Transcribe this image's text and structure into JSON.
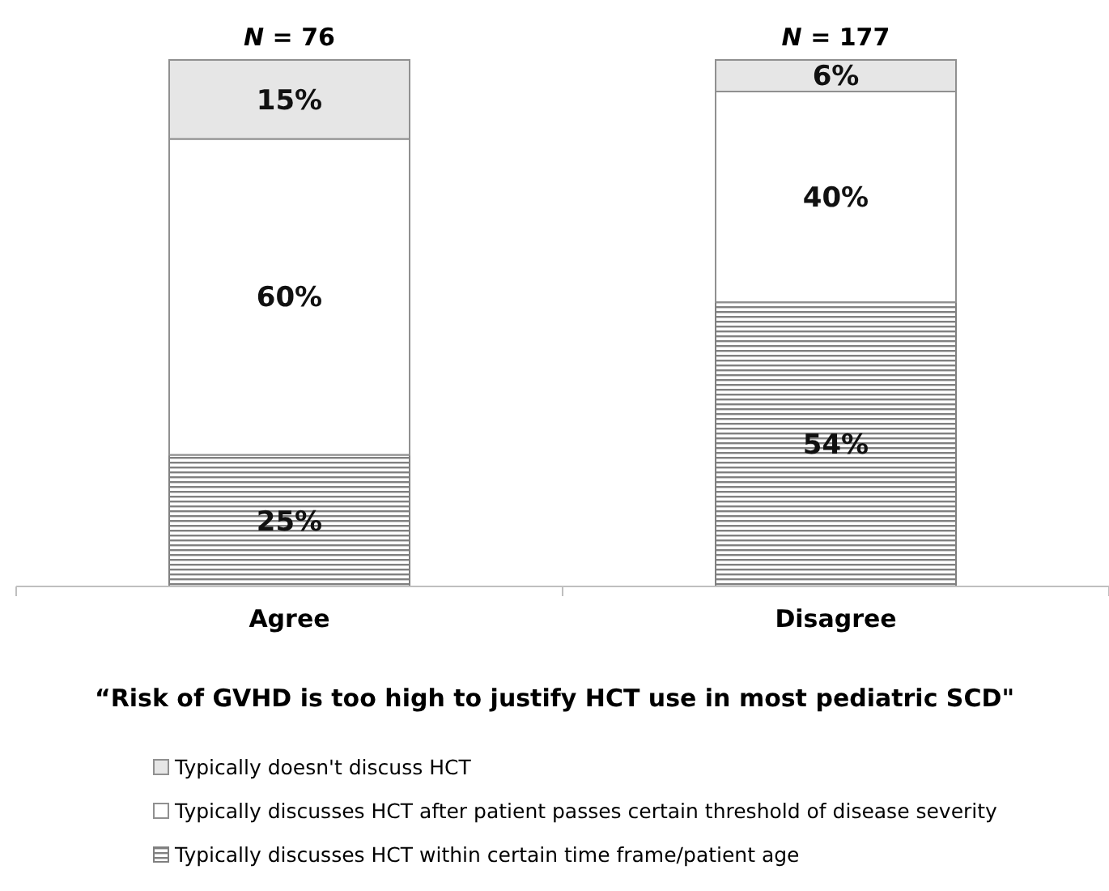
{
  "chart_data": {
    "type": "bar",
    "stacked": true,
    "categories": [
      "Agree",
      "Disagree"
    ],
    "series": [
      {
        "name": "Typically discusses HCT within certain time frame/patient age",
        "color": "#808080",
        "values": [
          25,
          54
        ],
        "value_labels": [
          "25%",
          "54%"
        ]
      },
      {
        "name": "Typically discusses HCT after patient passes certain threshold of disease severity",
        "color": "#ffffff",
        "values": [
          60,
          40
        ],
        "value_labels": [
          "60%",
          "40%"
        ]
      },
      {
        "name": "Typically doesn't discuss HCT",
        "color": "#e6e6e6",
        "values": [
          15,
          6
        ],
        "value_labels": [
          "15%",
          "6%"
        ]
      }
    ],
    "xlabel": "“Risk of GVHD is too high to justify HCT use in most pediatric SCD\"",
    "annotations": [
      {
        "text": "N = 76",
        "x": "Agree",
        "y": 100
      },
      {
        "text": "N = 177",
        "x": "Disagree",
        "y": 100
      }
    ],
    "legend": "bottom"
  }
}
